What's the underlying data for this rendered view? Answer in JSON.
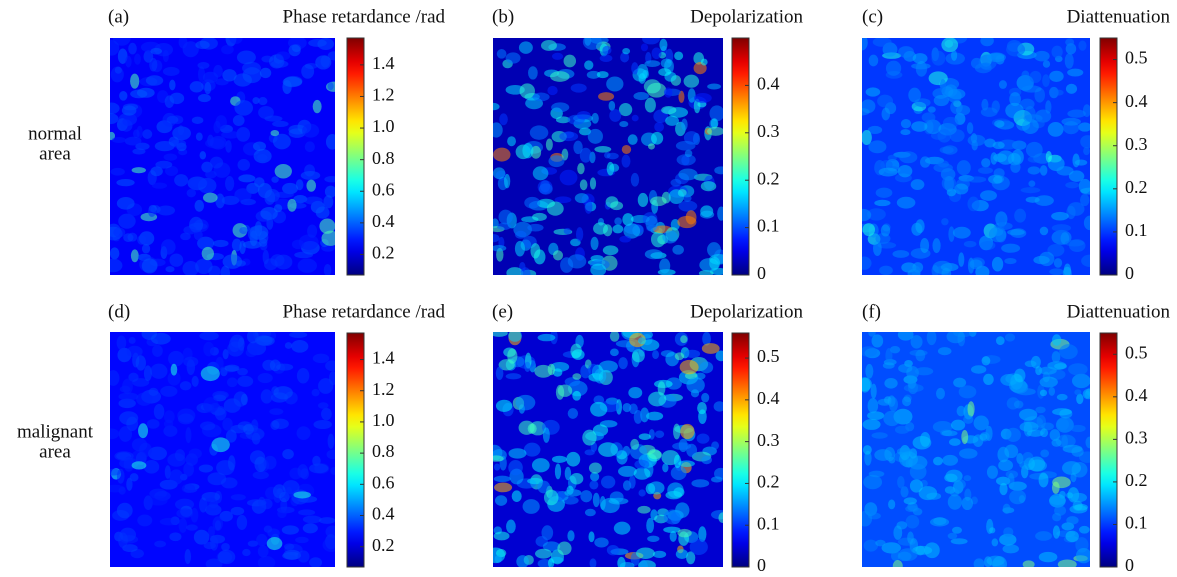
{
  "row_labels": [
    [
      "normal",
      "area"
    ],
    [
      "malignant",
      "area"
    ]
  ],
  "chart_data": [
    {
      "type": "heatmap",
      "panel": "(a)",
      "title": "Phase retardance /rad",
      "ylim": [
        0.07,
        1.57
      ],
      "yticks": [
        0.2,
        0.4,
        0.6,
        0.8,
        {
          "value": 1,
          "label": "1.0"
        },
        1.2,
        1.4
      ]
    },
    {
      "type": "heatmap",
      "panel": "(b)",
      "title": "Depolarization",
      "ylim": [
        0,
        0.5
      ],
      "yticks": [
        0,
        0.1,
        0.2,
        0.3,
        0.4
      ]
    },
    {
      "type": "heatmap",
      "panel": "(c)",
      "title": "Diattenuation",
      "ylim": [
        0,
        0.55
      ],
      "yticks": [
        0,
        0.1,
        0.2,
        0.3,
        0.4,
        0.5
      ]
    },
    {
      "type": "heatmap",
      "panel": "(d)",
      "title": "Phase retardance /rad",
      "ylim": [
        0.07,
        1.57
      ],
      "yticks": [
        0.2,
        0.4,
        0.6,
        0.8,
        {
          "value": 1,
          "label": "1.0"
        },
        1.2,
        1.4
      ]
    },
    {
      "type": "heatmap",
      "panel": "(e)",
      "title": "Depolarization",
      "ylim": [
        0,
        0.56
      ],
      "yticks": [
        0,
        0.1,
        0.2,
        0.3,
        0.4,
        0.5
      ]
    },
    {
      "type": "heatmap",
      "panel": "(f)",
      "title": "Diattenuation",
      "ylim": [
        0,
        0.55
      ],
      "yticks": [
        0,
        0.1,
        0.2,
        0.3,
        0.4,
        0.5
      ]
    }
  ]
}
